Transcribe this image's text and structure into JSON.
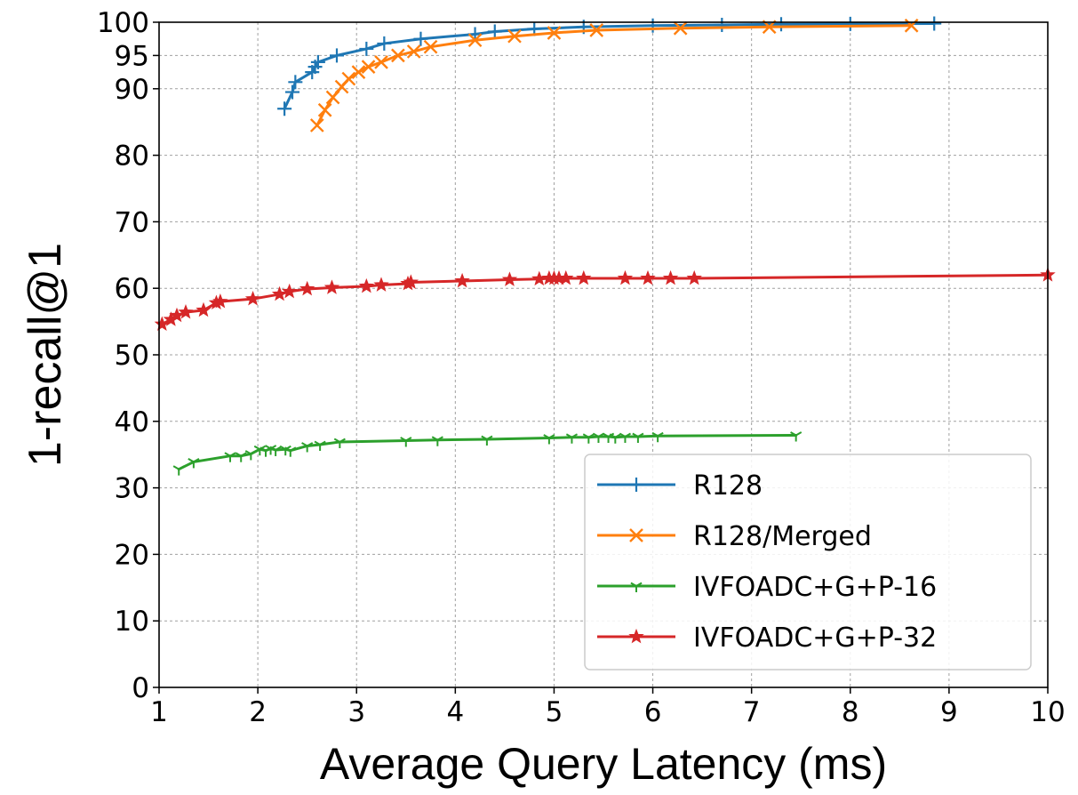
{
  "chart_data": {
    "type": "line",
    "title": "",
    "xlabel": "Average Query Latency (ms)",
    "ylabel": "1-recall@1",
    "xlim": [
      1,
      10
    ],
    "ylim": [
      0,
      100
    ],
    "xticks": [
      1,
      2,
      3,
      4,
      5,
      6,
      7,
      8,
      9,
      10
    ],
    "yticks": [
      0,
      10,
      20,
      30,
      40,
      50,
      60,
      70,
      80,
      90,
      95,
      100
    ],
    "grid": true,
    "legend_position": "lower-right",
    "series": [
      {
        "name": "R128",
        "color": "#1f77b4",
        "marker": "plus",
        "x": [
          2.27,
          2.35,
          2.38,
          2.55,
          2.58,
          2.61,
          2.8,
          3.1,
          3.28,
          3.65,
          4.2,
          4.4,
          4.8,
          5.3,
          6.0,
          6.7,
          7.3,
          8.0,
          8.85
        ],
        "y": [
          87.0,
          89.5,
          91.0,
          92.5,
          93.3,
          94.0,
          95.0,
          96.0,
          96.8,
          97.5,
          98.2,
          98.6,
          99.0,
          99.3,
          99.5,
          99.6,
          99.7,
          99.75,
          99.8
        ]
      },
      {
        "name": "R128/Merged",
        "color": "#ff7f0e",
        "marker": "x",
        "x": [
          2.6,
          2.68,
          2.76,
          2.85,
          2.92,
          3.02,
          3.12,
          3.25,
          3.42,
          3.58,
          3.75,
          4.2,
          4.6,
          5.0,
          5.43,
          6.28,
          7.18,
          8.62
        ],
        "y": [
          84.5,
          86.8,
          88.7,
          90.3,
          91.5,
          92.5,
          93.3,
          94.0,
          95.0,
          95.6,
          96.3,
          97.3,
          97.9,
          98.4,
          98.8,
          99.1,
          99.3,
          99.5
        ]
      },
      {
        "name": "IVFOADC+G+P-16",
        "color": "#2ca02c",
        "marker": "tri_down",
        "x": [
          1.2,
          1.35,
          1.72,
          1.83,
          1.93,
          2.02,
          2.08,
          2.13,
          2.18,
          2.28,
          2.33,
          2.5,
          2.63,
          2.83,
          3.5,
          3.82,
          4.32,
          4.95,
          5.18,
          5.35,
          5.45,
          5.55,
          5.62,
          5.72,
          5.85,
          6.05,
          7.45
        ],
        "y": [
          32.8,
          33.9,
          34.8,
          34.8,
          35.1,
          35.8,
          35.6,
          35.9,
          35.7,
          35.8,
          35.6,
          36.3,
          36.5,
          36.9,
          37.1,
          37.2,
          37.3,
          37.5,
          37.6,
          37.6,
          37.7,
          37.7,
          37.6,
          37.7,
          37.7,
          37.8,
          37.9
        ]
      },
      {
        "name": "IVFOADC+G+P-32",
        "color": "#d62728",
        "marker": "star",
        "x": [
          1.03,
          1.12,
          1.18,
          1.27,
          1.45,
          1.58,
          1.62,
          1.95,
          2.22,
          2.32,
          2.5,
          2.75,
          3.1,
          3.25,
          3.52,
          3.55,
          4.07,
          4.55,
          4.85,
          4.95,
          5.0,
          5.05,
          5.12,
          5.3,
          5.72,
          5.95,
          6.18,
          6.42,
          10.0
        ],
        "y": [
          54.6,
          55.3,
          55.9,
          56.4,
          56.7,
          57.8,
          58.0,
          58.4,
          59.1,
          59.5,
          59.9,
          60.1,
          60.3,
          60.5,
          60.7,
          60.9,
          61.1,
          61.3,
          61.4,
          61.5,
          61.5,
          61.5,
          61.5,
          61.5,
          61.5,
          61.5,
          61.5,
          61.5,
          62.0
        ]
      }
    ]
  }
}
